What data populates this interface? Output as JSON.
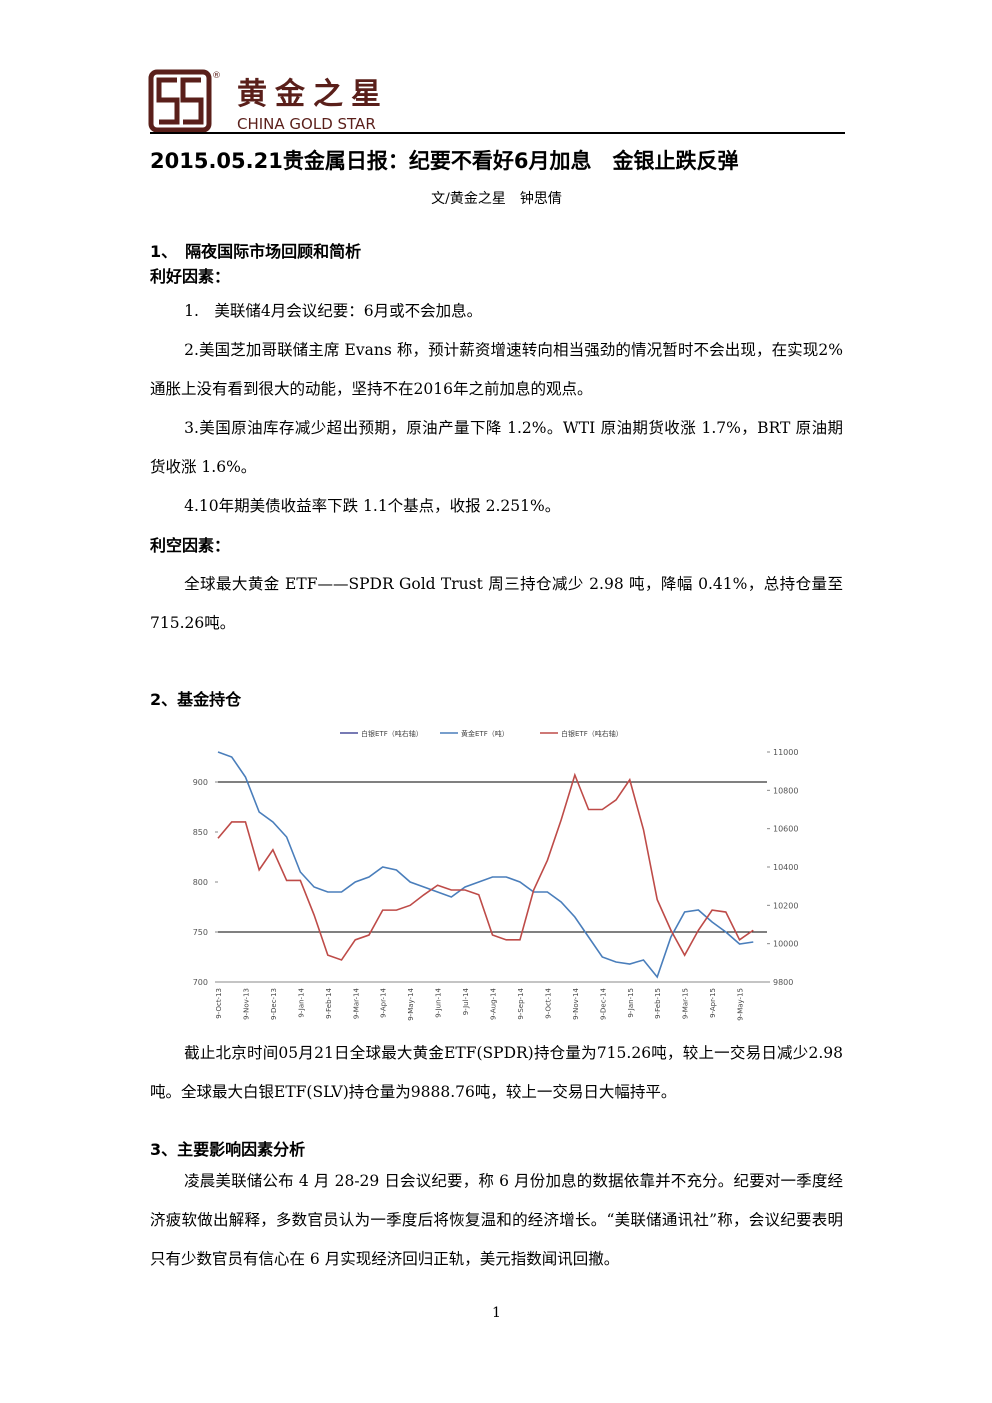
{
  "header": {
    "brand_cn": "黄金之星",
    "brand_en": "CHINA GOLD STAR",
    "registered": "®"
  },
  "title": "2015.05.21贵金属日报：纪要不看好6月加息　金银止跌反弹",
  "author": "文/黄金之星　钟思倩",
  "section1": {
    "heading": "1、　隔夜国际市场回顾和简析",
    "positive_label": "利好因素：",
    "positive": [
      "1.　美联储4月会议纪要：6月或不会加息。",
      "2.美国芝加哥联储主席 Evans 称，预计薪资增速转向相当强劲的情况暂时不会出现，在实现2%通胀上没有看到很大的动能，坚持不在2016年之前加息的观点。",
      "3.美国原油库存减少超出预期，原油产量下降 1.2%。WTI 原油期货收涨 1.7%，BRT 原油期货收涨 1.6%。",
      "4.10年期美债收益率下跌 1.1个基点，收报 2.251%。"
    ],
    "negative_label": "利空因素：",
    "negative": [
      "全球最大黄金 ETF——SPDR Gold Trust 周三持仓减少 2.98 吨，降幅 0.41%，总持仓量至 715.26吨。"
    ]
  },
  "section2": {
    "heading": "2、基金持仓",
    "paragraph": "截止北京时间05月21日全球最大黄金ETF(SPDR)持仓量为715.26吨，较上一交易日减少2.98吨。全球最大白银ETF(SLV)持仓量为9888.76吨，较上一交易日大幅持平。"
  },
  "chart_data": {
    "type": "line",
    "categories": [
      "9-Oct-13",
      null,
      "9-Nov-13",
      null,
      "9-Dec-13",
      null,
      "9-Jan-14",
      null,
      "9-Feb-14",
      null,
      "9-Mar-14",
      null,
      "9-Apr-14",
      null,
      "9-May-14",
      null,
      "9-Jun-14",
      null,
      "9-Jul-14",
      null,
      "9-Aug-14",
      null,
      "9-Sep-14",
      null,
      "9-Oct-14",
      null,
      "9-Nov-14",
      null,
      "9-Dec-14",
      null,
      "9-Jan-15",
      null,
      "9-Feb-15",
      null,
      "9-Mar-15",
      null,
      "9-Apr-15",
      null,
      "9-May-15",
      null
    ],
    "series": [
      {
        "name": "白银ETF（吨右轴）",
        "color": "#4a4f9c",
        "axis": "y2",
        "values": [
          null,
          null,
          null,
          null,
          null,
          null,
          null,
          null,
          null,
          null,
          null,
          null,
          null,
          null,
          null,
          null,
          null,
          null,
          null,
          null,
          null,
          null,
          null,
          null,
          null,
          null,
          null,
          null,
          null,
          null,
          null,
          null,
          null,
          null,
          null,
          null,
          null,
          null,
          null,
          null
        ]
      },
      {
        "name": "黄金ETF（吨）",
        "color": "#4a7ebb",
        "values": [
          930,
          925,
          905,
          870,
          860,
          845,
          810,
          795,
          790,
          790,
          800,
          805,
          815,
          812,
          800,
          795,
          790,
          785,
          795,
          800,
          805,
          805,
          800,
          790,
          790,
          780,
          765,
          745,
          725,
          720,
          718,
          722,
          705,
          745,
          770,
          772,
          760,
          750,
          738,
          740
        ]
      },
      {
        "name": "白银ETF（吨右轴）",
        "color": "#be4b48",
        "axis": "y2",
        "values": [
          10550,
          10635,
          10635,
          10385,
          10490,
          10330,
          10330,
          10150,
          9940,
          9915,
          10020,
          10045,
          10175,
          10175,
          10200,
          10255,
          10305,
          10280,
          10280,
          10255,
          10045,
          10020,
          10020,
          10280,
          10435,
          10645,
          10880,
          10700,
          10700,
          10750,
          10855,
          10595,
          10230,
          10070,
          9940,
          10070,
          10175,
          10165,
          10020,
          10070
        ]
      }
    ],
    "ylim": [
      700,
      930
    ],
    "yticks": [
      700,
      750,
      800,
      850,
      900
    ],
    "y2lim": [
      9800,
      11000
    ],
    "y2ticks": [
      9800,
      10000,
      10200,
      10400,
      10600,
      10800,
      11000
    ],
    "hlines": [
      900,
      750
    ],
    "legend": "top"
  },
  "section3": {
    "heading": "3、主要影响因素分析",
    "paragraph": "凌晨美联储公布 4 月 28-29 日会议纪要，称 6 月份加息的数据依靠并不充分。纪要对一季度经济疲软做出解释，多数官员认为一季度后将恢复温和的经济增长。“美联储通讯社”称，会议纪要表明只有少数官员有信心在 6 月实现经济回归正轨，美元指数闻讯回撤。"
  },
  "page_number": "1"
}
